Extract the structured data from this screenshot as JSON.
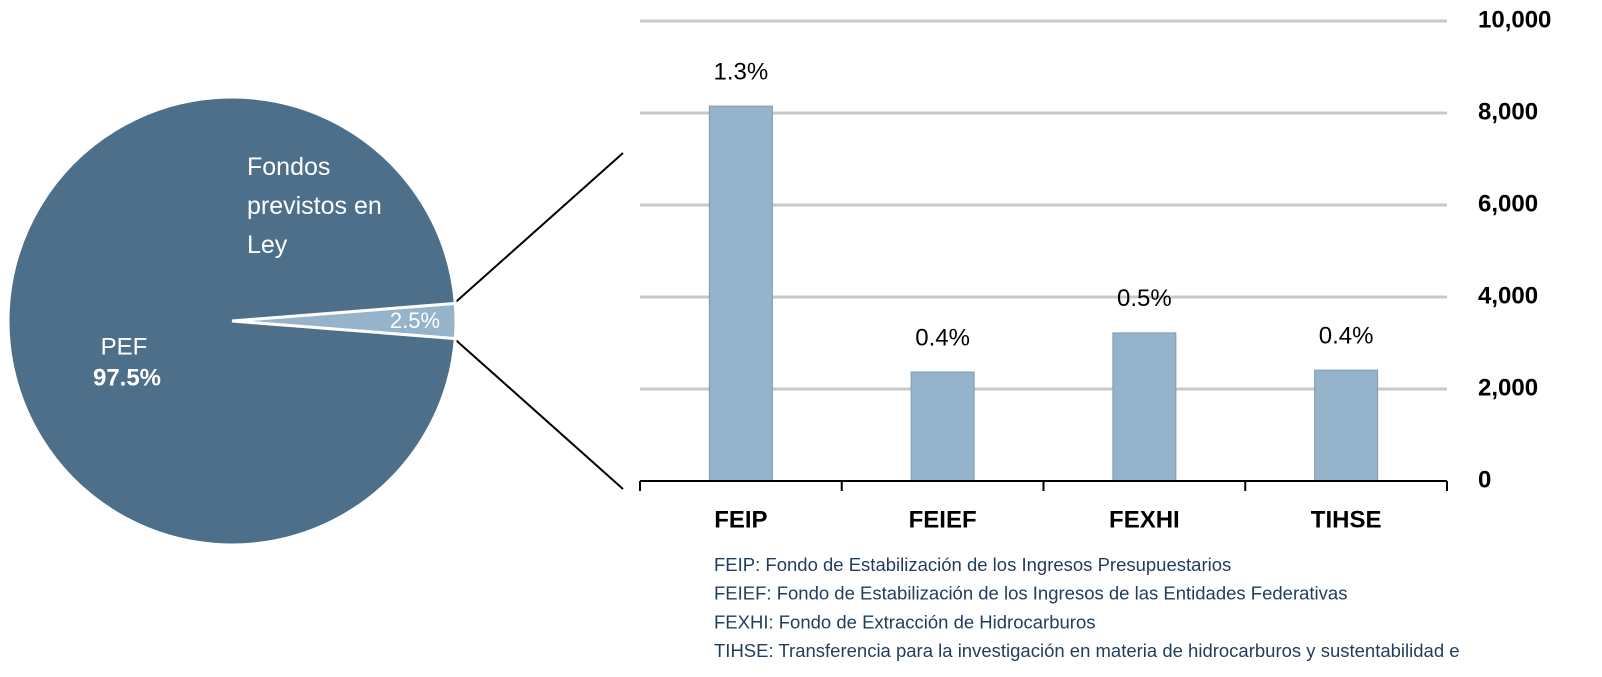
{
  "chart_data": [
    {
      "type": "pie",
      "categories": [
        "PEF",
        "Fondos previstos en Ley"
      ],
      "values": [
        97.5,
        2.5
      ],
      "value_labels": [
        "97.5%",
        "2.5%"
      ],
      "colors": [
        "#4e6f8a",
        "#95b4cb"
      ]
    },
    {
      "type": "bar",
      "categories": [
        "FEIP",
        "FEIEF",
        "FEXHI",
        "TIHSE"
      ],
      "values": [
        8150,
        2370,
        3220,
        2410
      ],
      "share_labels": [
        "1.3%",
        "0.4%",
        "0.5%",
        "0.4%"
      ],
      "color": "#95b4cb",
      "ylim": [
        0,
        10000
      ],
      "yticks": [
        0,
        {
          "value": 2000,
          "label": "2,000"
        },
        {
          "value": 4000,
          "label": "4,000"
        },
        {
          "value": 6000,
          "label": "6,000"
        },
        {
          "value": 8000,
          "label": "8,000"
        },
        {
          "value": 10000,
          "label": "10,000"
        }
      ],
      "y_axis_side": "right",
      "grid": true,
      "notes": [
        "FEIP: Fondo de Estabilización de los Ingresos Presupuestarios",
        "FEIEF: Fondo de Estabilización de los Ingresos de las Entidades Federativas",
        "FEXHI: Fondo de Extracción de Hidrocarburos",
        "TIHSE: Transferencia para la investigación en materia de hidrocarburos y sustentabilidad e"
      ]
    }
  ]
}
